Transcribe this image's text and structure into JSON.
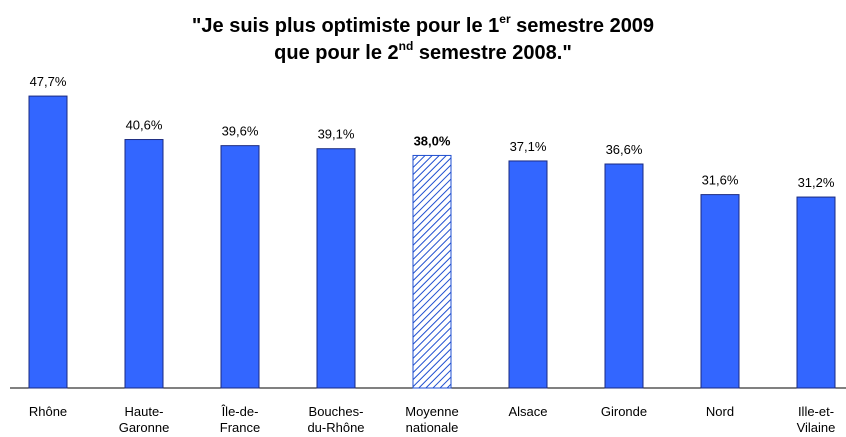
{
  "chart_data": {
    "type": "bar",
    "title_lines": [
      [
        "\"Je suis plus optimiste pour le 1",
        "er",
        " semestre 2009"
      ],
      [
        "que pour le 2",
        "nd",
        " semestre 2008.\""
      ]
    ],
    "categories": [
      "Rhône",
      "Haute-\nGaronne",
      "Île-de-\nFrance",
      "Bouches-\ndu-Rhône",
      "Moyenne\nnationale",
      "Alsace",
      "Gironde",
      "Nord",
      "Ille-et-\nVilaine"
    ],
    "values": [
      47.7,
      40.6,
      39.6,
      39.1,
      38.0,
      37.1,
      36.6,
      31.6,
      31.2
    ],
    "value_labels": [
      "47,7%",
      "40,6%",
      "39,6%",
      "39,1%",
      "38,0%",
      "37,1%",
      "36,6%",
      "31,6%",
      "31,2%"
    ],
    "color": "#3366ff",
    "highlight_index": 4,
    "highlight_color": "#1f4fd0",
    "ylim": [
      0,
      50
    ]
  }
}
